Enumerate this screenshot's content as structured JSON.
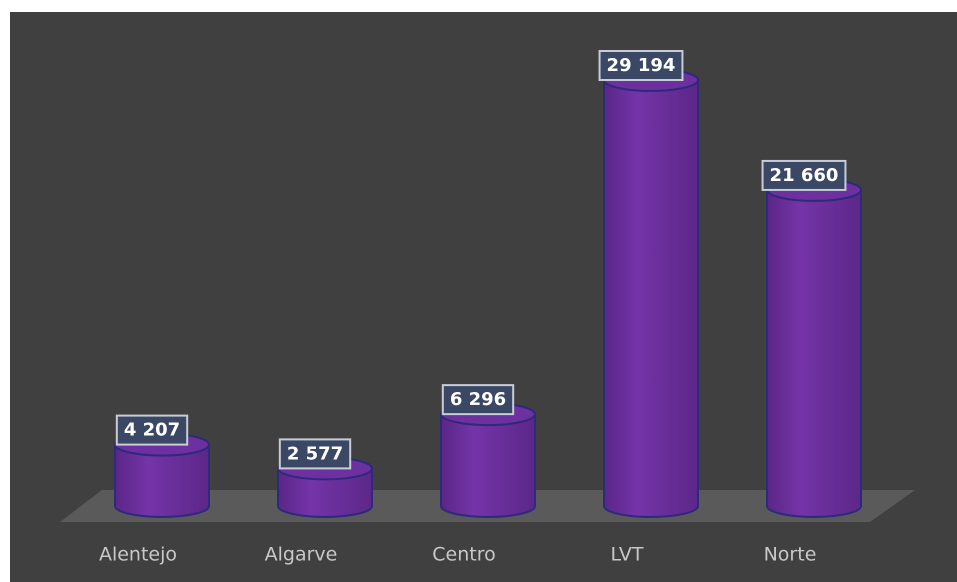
{
  "chart_data": {
    "type": "bar",
    "categories": [
      "Alentejo",
      "Algarve",
      "Centro",
      "LVT",
      "Norte"
    ],
    "values": [
      4207,
      2577,
      6296,
      29194,
      21660
    ],
    "value_labels": [
      "4 207",
      "2 577",
      "6 296",
      "29 194",
      "21 660"
    ],
    "color": "#6a2f9a"
  }
}
